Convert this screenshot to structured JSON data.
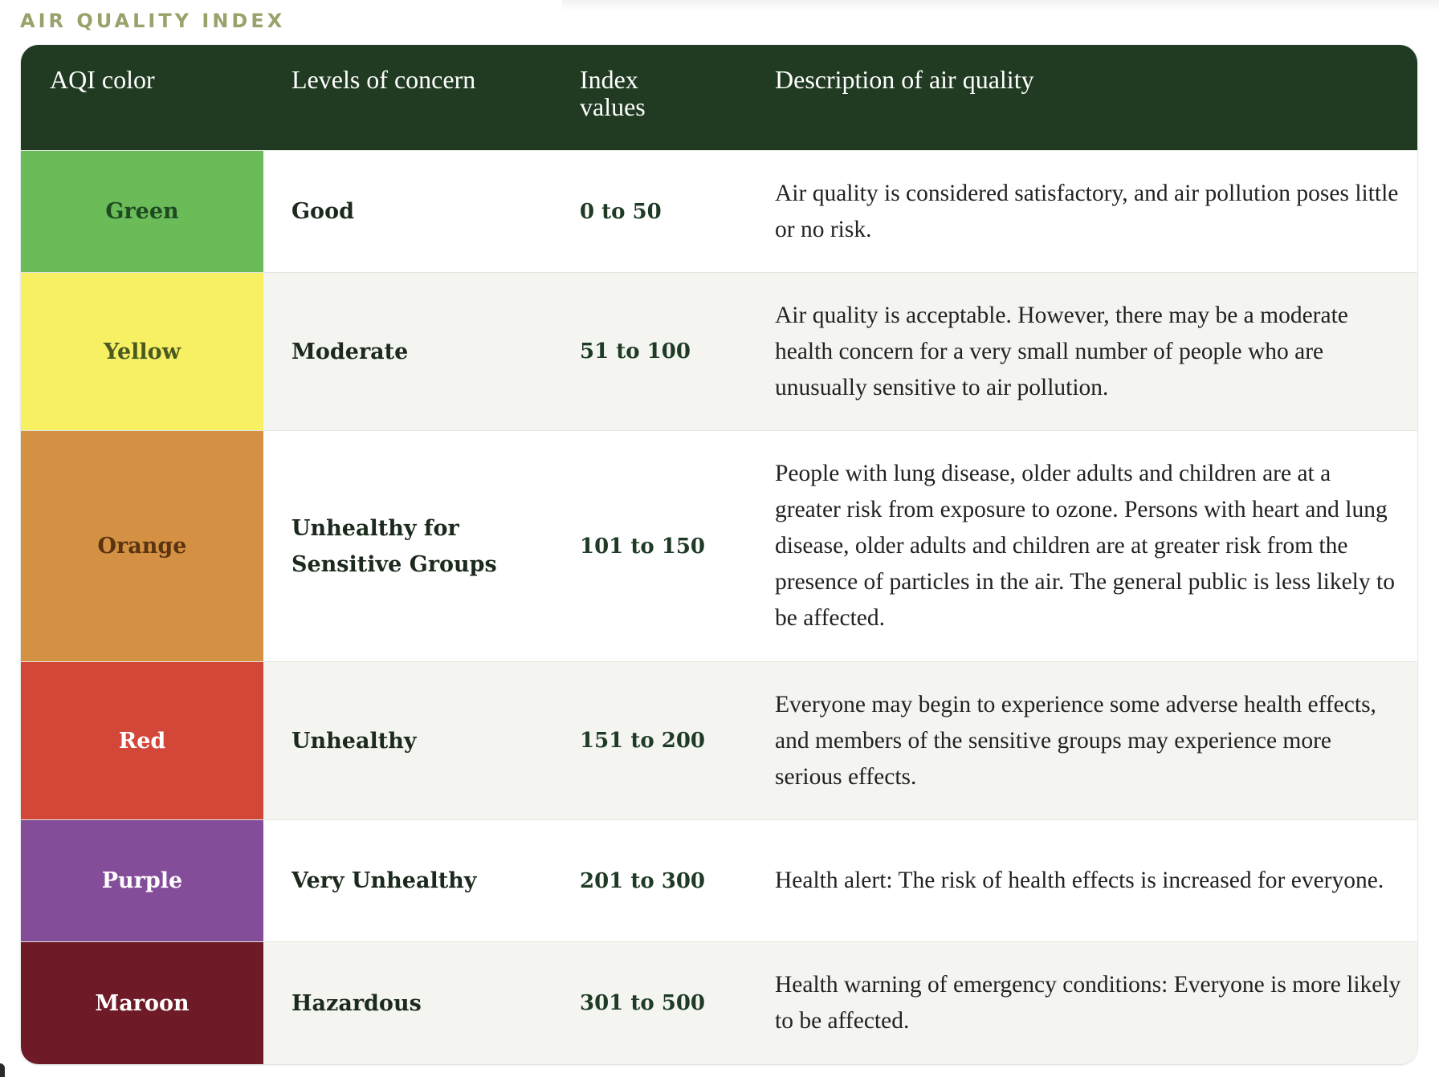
{
  "title": "AIR QUALITY INDEX",
  "table": {
    "headers": {
      "color": "AQI color",
      "level": "Levels of concern",
      "index": "Index values",
      "description": "Description of air quality"
    },
    "rows": [
      {
        "color_name": "Green",
        "bg": "#6cbb59",
        "text_color": "#1d4a21",
        "level": "Good",
        "index": "0 to 50",
        "description": "Air quality is considered satisfactory, and air pollution poses little or no risk."
      },
      {
        "color_name": "Yellow",
        "bg": "#f7f063",
        "text_color": "#4a5a22",
        "level": "Moderate",
        "index": "51 to 100",
        "description": "Air quality is acceptable. However, there may be a moderate health concern for a very small number of people who are unusually sensitive to air pollution."
      },
      {
        "color_name": "Orange",
        "bg": "#d59143",
        "text_color": "#5a3410",
        "level": "Unhealthy for Sensitive Groups",
        "index": "101 to 150",
        "description": "People with lung disease, older adults and children are at a greater risk from exposure to ozone. Persons with heart and lung disease, older adults and children are at greater risk from the presence of particles in the air. The general public is less likely to be affected."
      },
      {
        "color_name": "Red",
        "bg": "#d24738",
        "text_color": "#ffffff",
        "level": "Unhealthy",
        "index": "151 to 200",
        "description": "Everyone may begin to experience some adverse health effects, and members of the sensitive groups may experience more serious effects."
      },
      {
        "color_name": "Purple",
        "bg": "#834d9a",
        "text_color": "#ffffff",
        "level": "Very Unhealthy",
        "index": "201 to 300",
        "description": "Health alert: The risk of health effects is increased for everyone."
      },
      {
        "color_name": "Maroon",
        "bg": "#6e1b27",
        "text_color": "#ffffff",
        "level": "Hazardous",
        "index": "301 to 500",
        "description": "Health warning of emergency conditions: Everyone is more likely to be affected."
      }
    ]
  },
  "colors": {
    "header_bg": "#213b22",
    "title_color": "#9aa26c",
    "alt_row_bg": "#f4f5f1"
  }
}
